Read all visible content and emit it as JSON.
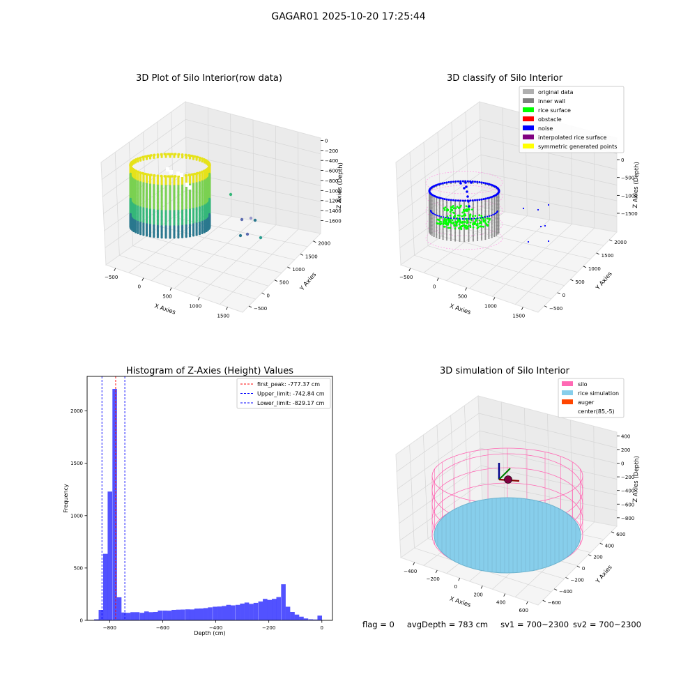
{
  "figure": {
    "title": "GAGAR01 2025-10-20 17:25:44",
    "footer": {
      "flag": "flag = 0",
      "avg_depth": "avgDepth = 783 cm",
      "sv1": "sv1 = 700~2300",
      "sv2": "sv2 = 700~2300"
    }
  },
  "chart_data": [
    {
      "type": "scatter",
      "projection": "3d",
      "title": "3D Plot of Silo Interior(row data)",
      "xlabel": "X Axies",
      "ylabel": "Y Axies",
      "zlabel": "Z Axies (Depth)",
      "x_ticks": [
        "−500",
        "0",
        "500",
        "1000",
        "1500"
      ],
      "y_ticks": [
        "−500",
        "0",
        "500",
        "1000",
        "1500",
        "2000"
      ],
      "z_ticks": [
        "0",
        "−200",
        "−400",
        "−600",
        "−800",
        "−1000",
        "−1200",
        "−1400",
        "−1600"
      ],
      "colormap": "viridis",
      "colors": {
        "top": "#e6e21a",
        "mid": "#35b779",
        "bottom": "#31688e"
      }
    },
    {
      "type": "scatter",
      "projection": "3d",
      "title": "3D classify of Silo Interior",
      "xlabel": "X Axies",
      "ylabel": "Y Axies",
      "zlabel": "Z Axies (Depth)",
      "x_ticks": [
        "−500",
        "0",
        "500",
        "1000",
        "1500"
      ],
      "y_ticks": [
        "−500",
        "0",
        "500",
        "1000",
        "1500",
        "2000"
      ],
      "z_ticks": [
        "0",
        "−500",
        "−1000",
        "−1500"
      ],
      "legend_position": "top-right",
      "legend": [
        {
          "label": "original data",
          "color": "#b0b0b0"
        },
        {
          "label": "inner wall",
          "color": "#808080"
        },
        {
          "label": "rice surface",
          "color": "#00ff00"
        },
        {
          "label": "obstacle",
          "color": "#ff0000"
        },
        {
          "label": "noise",
          "color": "#0000ff"
        },
        {
          "label": "interpolated rice surface",
          "color": "#800080"
        },
        {
          "label": "symmetric generated points",
          "color": "#ffff00"
        }
      ]
    },
    {
      "type": "bar",
      "title": "Histogram of Z-Axies (Height) Values",
      "xlabel": "Depth (cm)",
      "ylabel": "Frequency",
      "xlim": [
        -885,
        40
      ],
      "ylim": [
        0,
        2330
      ],
      "x_ticks": [
        -800,
        -600,
        -400,
        -200,
        0
      ],
      "x_tick_labels": [
        "−800",
        "−600",
        "−400",
        "−200",
        "0"
      ],
      "y_ticks": [
        0,
        500,
        1000,
        1500,
        2000
      ],
      "y_tick_labels": [
        "0",
        "500",
        "1000",
        "1500",
        "2000"
      ],
      "bar_color": "#0000ff",
      "bin_width": 17.2,
      "bins": [
        {
          "x": -850,
          "value": 10
        },
        {
          "x": -833,
          "value": 100
        },
        {
          "x": -816,
          "value": 635
        },
        {
          "x": -799,
          "value": 1230
        },
        {
          "x": -781,
          "value": 2210
        },
        {
          "x": -764,
          "value": 220
        },
        {
          "x": -747,
          "value": 75
        },
        {
          "x": -730,
          "value": 72
        },
        {
          "x": -713,
          "value": 78
        },
        {
          "x": -696,
          "value": 78
        },
        {
          "x": -678,
          "value": 72
        },
        {
          "x": -661,
          "value": 85
        },
        {
          "x": -644,
          "value": 78
        },
        {
          "x": -627,
          "value": 80
        },
        {
          "x": -610,
          "value": 93
        },
        {
          "x": -592,
          "value": 93
        },
        {
          "x": -575,
          "value": 92
        },
        {
          "x": -558,
          "value": 100
        },
        {
          "x": -541,
          "value": 102
        },
        {
          "x": -524,
          "value": 103
        },
        {
          "x": -506,
          "value": 105
        },
        {
          "x": -489,
          "value": 104
        },
        {
          "x": -472,
          "value": 112
        },
        {
          "x": -455,
          "value": 113
        },
        {
          "x": -438,
          "value": 117
        },
        {
          "x": -421,
          "value": 124
        },
        {
          "x": -403,
          "value": 130
        },
        {
          "x": -386,
          "value": 132
        },
        {
          "x": -369,
          "value": 137
        },
        {
          "x": -352,
          "value": 148
        },
        {
          "x": -335,
          "value": 143
        },
        {
          "x": -317,
          "value": 148
        },
        {
          "x": -300,
          "value": 160
        },
        {
          "x": -283,
          "value": 170
        },
        {
          "x": -266,
          "value": 157
        },
        {
          "x": -249,
          "value": 167
        },
        {
          "x": -231,
          "value": 180
        },
        {
          "x": -214,
          "value": 205
        },
        {
          "x": -197,
          "value": 195
        },
        {
          "x": -180,
          "value": 205
        },
        {
          "x": -163,
          "value": 222
        },
        {
          "x": -145,
          "value": 345
        },
        {
          "x": -128,
          "value": 130
        },
        {
          "x": -111,
          "value": 80
        },
        {
          "x": -94,
          "value": 55
        },
        {
          "x": -77,
          "value": 35
        },
        {
          "x": -60,
          "value": 18
        },
        {
          "x": -42,
          "value": 10
        },
        {
          "x": -25,
          "value": 8
        },
        {
          "x": -8,
          "value": 45
        }
      ],
      "vlines": [
        {
          "x": -777.37,
          "color": "#ff0000",
          "label": "first_peak: -777.37 cm"
        },
        {
          "x": -742.84,
          "color": "#0000ff",
          "label": "Upper_limit: -742.84 cm"
        },
        {
          "x": -829.17,
          "color": "#0000ff",
          "label": "Lower_limit: -829.17 cm"
        }
      ],
      "legend_position": "top-right"
    },
    {
      "type": "scatter",
      "projection": "3d",
      "title": "3D simulation of Silo Interior",
      "xlabel": "X Axies",
      "ylabel": "Y Axies",
      "zlabel": "Z Axies (Depth)",
      "x_ticks": [
        "−400",
        "−200",
        "0",
        "200",
        "400",
        "600"
      ],
      "y_ticks": [
        "−600",
        "−400",
        "−200",
        "0",
        "200",
        "400",
        "600"
      ],
      "z_ticks": [
        "400",
        "200",
        "0",
        "−200",
        "−400",
        "−600",
        "−800"
      ],
      "legend_position": "top-right",
      "legend": [
        {
          "label": "silo",
          "color": "#ff69b4"
        },
        {
          "label": "rice simulation",
          "color": "#87ceeb"
        },
        {
          "label": "auger",
          "color": "#ff4500"
        },
        {
          "label": "center(85,-5)",
          "color": "none"
        }
      ]
    }
  ]
}
